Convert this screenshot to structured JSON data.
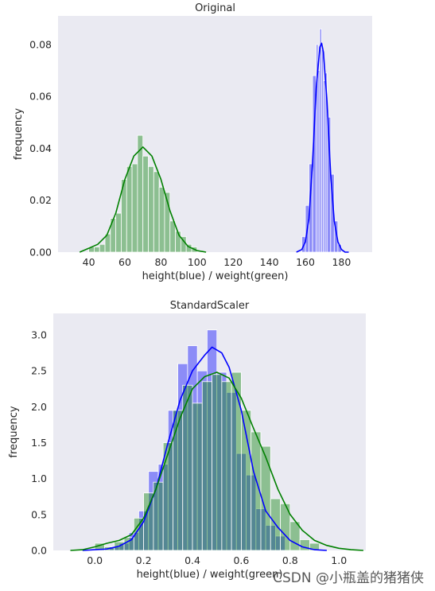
{
  "watermark": "CSDN @小瓶盖的猪猪侠",
  "chart_data": [
    {
      "type": "histogram",
      "title": "Original",
      "xlabel": "height(blue) / weight(green)",
      "ylabel": "frequency",
      "xlim": [
        23,
        197
      ],
      "ylim": [
        0,
        0.091
      ],
      "xticks": [
        40,
        60,
        80,
        100,
        120,
        140,
        160,
        180
      ],
      "yticks": [
        0.0,
        0.02,
        0.04,
        0.06,
        0.08
      ],
      "ytick_labels": [
        "0.00",
        "0.02",
        "0.04",
        "0.06",
        "0.08"
      ],
      "grid": false,
      "background": "#eaeaf2",
      "series": [
        {
          "name": "weight",
          "color": "#008000",
          "bins": [
            {
              "x0": 36.5,
              "x1": 39.5,
              "h": 0.0
            },
            {
              "x0": 40,
              "x1": 43,
              "h": 0.002
            },
            {
              "x0": 43,
              "x1": 46,
              "h": 0.002
            },
            {
              "x0": 46,
              "x1": 49,
              "h": 0.003
            },
            {
              "x0": 49,
              "x1": 52,
              "h": 0.007
            },
            {
              "x0": 52,
              "x1": 55,
              "h": 0.013
            },
            {
              "x0": 55,
              "x1": 58,
              "h": 0.015
            },
            {
              "x0": 58,
              "x1": 61,
              "h": 0.028
            },
            {
              "x0": 61,
              "x1": 64,
              "h": 0.033
            },
            {
              "x0": 64,
              "x1": 67,
              "h": 0.034
            },
            {
              "x0": 67,
              "x1": 70,
              "h": 0.045
            },
            {
              "x0": 70,
              "x1": 73,
              "h": 0.037
            },
            {
              "x0": 73,
              "x1": 76,
              "h": 0.033
            },
            {
              "x0": 76,
              "x1": 79,
              "h": 0.031
            },
            {
              "x0": 79,
              "x1": 82,
              "h": 0.025
            },
            {
              "x0": 82,
              "x1": 85,
              "h": 0.023
            },
            {
              "x0": 85,
              "x1": 88,
              "h": 0.012
            },
            {
              "x0": 88,
              "x1": 91,
              "h": 0.008
            },
            {
              "x0": 91,
              "x1": 94,
              "h": 0.006
            },
            {
              "x0": 94,
              "x1": 97,
              "h": 0.003
            },
            {
              "x0": 97,
              "x1": 100,
              "h": 0.002
            }
          ],
          "kde": {
            "x": [
              35,
              40,
              45,
              50,
              55,
              60,
              65,
              70,
              75,
              80,
              85,
              90,
              95,
              100,
              105
            ],
            "y": [
              0.0,
              0.0015,
              0.003,
              0.0065,
              0.015,
              0.028,
              0.037,
              0.0405,
              0.037,
              0.028,
              0.016,
              0.0065,
              0.0022,
              0.0006,
              0.0
            ]
          }
        },
        {
          "name": "height",
          "color": "#0000ff",
          "bins": [
            {
              "x0": 156,
              "x1": 158,
              "h": 0.0
            },
            {
              "x0": 158,
              "x1": 160,
              "h": 0.006
            },
            {
              "x0": 160,
              "x1": 162,
              "h": 0.018
            },
            {
              "x0": 162,
              "x1": 164,
              "h": 0.034
            },
            {
              "x0": 164,
              "x1": 166,
              "h": 0.068
            },
            {
              "x0": 166,
              "x1": 167,
              "h": 0.08
            },
            {
              "x0": 167,
              "x1": 168,
              "h": 0.07
            },
            {
              "x0": 168,
              "x1": 169,
              "h": 0.086
            },
            {
              "x0": 169,
              "x1": 170,
              "h": 0.078
            },
            {
              "x0": 170,
              "x1": 171,
              "h": 0.066
            },
            {
              "x0": 171,
              "x1": 172,
              "h": 0.069
            },
            {
              "x0": 172,
              "x1": 174,
              "h": 0.052
            },
            {
              "x0": 174,
              "x1": 176,
              "h": 0.03
            },
            {
              "x0": 176,
              "x1": 178,
              "h": 0.012
            },
            {
              "x0": 178,
              "x1": 180,
              "h": 0.003
            }
          ],
          "kde": {
            "x": [
              155,
              158,
              160,
              162,
              164,
              166,
              168,
              169,
              170,
              172,
              174,
              176,
              178,
              180,
              182,
              184
            ],
            "y": [
              0.0,
              0.001,
              0.004,
              0.013,
              0.035,
              0.063,
              0.079,
              0.0805,
              0.077,
              0.058,
              0.03,
              0.012,
              0.004,
              0.001,
              0.0,
              0.0
            ]
          }
        }
      ]
    },
    {
      "type": "histogram",
      "title": "StandardScaler",
      "xlabel": "height(blue) / weight(green)",
      "ylabel": "frequency",
      "xlim": [
        -0.17,
        1.11
      ],
      "ylim": [
        0,
        3.3
      ],
      "xticks": [
        0.0,
        0.2,
        0.4,
        0.6,
        0.8,
        1.0
      ],
      "yticks": [
        0.0,
        0.5,
        1.0,
        1.5,
        2.0,
        2.5,
        3.0
      ],
      "grid": false,
      "background": "#eaeaf2",
      "series": [
        {
          "name": "height",
          "color": "#0000ff",
          "bins": [
            {
              "x0": 0.06,
              "x1": 0.1,
              "h": 0.05
            },
            {
              "x0": 0.1,
              "x1": 0.14,
              "h": 0.1
            },
            {
              "x0": 0.14,
              "x1": 0.18,
              "h": 0.25
            },
            {
              "x0": 0.18,
              "x1": 0.22,
              "h": 0.55
            },
            {
              "x0": 0.22,
              "x1": 0.26,
              "h": 1.1
            },
            {
              "x0": 0.26,
              "x1": 0.3,
              "h": 1.2
            },
            {
              "x0": 0.3,
              "x1": 0.34,
              "h": 1.95
            },
            {
              "x0": 0.34,
              "x1": 0.38,
              "h": 2.6
            },
            {
              "x0": 0.38,
              "x1": 0.42,
              "h": 2.85
            },
            {
              "x0": 0.42,
              "x1": 0.46,
              "h": 2.5
            },
            {
              "x0": 0.46,
              "x1": 0.5,
              "h": 3.07
            },
            {
              "x0": 0.5,
              "x1": 0.54,
              "h": 2.48
            },
            {
              "x0": 0.54,
              "x1": 0.58,
              "h": 2.2
            },
            {
              "x0": 0.58,
              "x1": 0.62,
              "h": 1.35
            },
            {
              "x0": 0.62,
              "x1": 0.66,
              "h": 1.05
            },
            {
              "x0": 0.66,
              "x1": 0.7,
              "h": 0.58
            },
            {
              "x0": 0.7,
              "x1": 0.74,
              "h": 0.35
            },
            {
              "x0": 0.74,
              "x1": 0.78,
              "h": 0.2
            }
          ],
          "kde": {
            "x": [
              -0.05,
              0.05,
              0.1,
              0.15,
              0.2,
              0.25,
              0.3,
              0.35,
              0.4,
              0.45,
              0.48,
              0.52,
              0.55,
              0.6,
              0.65,
              0.7,
              0.75,
              0.8,
              0.85,
              0.9,
              0.95
            ],
            "y": [
              0.0,
              0.02,
              0.06,
              0.15,
              0.4,
              0.85,
              1.5,
              2.1,
              2.5,
              2.72,
              2.83,
              2.75,
              2.55,
              1.95,
              1.1,
              0.55,
              0.32,
              0.14,
              0.05,
              0.01,
              0.0
            ]
          }
        },
        {
          "name": "weight",
          "color": "#008000",
          "bins": [
            {
              "x0": 0.0,
              "x1": 0.04,
              "h": 0.1
            },
            {
              "x0": 0.04,
              "x1": 0.08,
              "h": 0.05
            },
            {
              "x0": 0.08,
              "x1": 0.12,
              "h": 0.12
            },
            {
              "x0": 0.12,
              "x1": 0.16,
              "h": 0.18
            },
            {
              "x0": 0.16,
              "x1": 0.2,
              "h": 0.45
            },
            {
              "x0": 0.2,
              "x1": 0.24,
              "h": 0.8
            },
            {
              "x0": 0.24,
              "x1": 0.28,
              "h": 0.95
            },
            {
              "x0": 0.28,
              "x1": 0.32,
              "h": 1.5
            },
            {
              "x0": 0.32,
              "x1": 0.36,
              "h": 1.95
            },
            {
              "x0": 0.36,
              "x1": 0.4,
              "h": 2.3
            },
            {
              "x0": 0.4,
              "x1": 0.44,
              "h": 2.05
            },
            {
              "x0": 0.44,
              "x1": 0.48,
              "h": 2.35
            },
            {
              "x0": 0.48,
              "x1": 0.52,
              "h": 2.45
            },
            {
              "x0": 0.52,
              "x1": 0.56,
              "h": 2.35
            },
            {
              "x0": 0.56,
              "x1": 0.6,
              "h": 2.48
            },
            {
              "x0": 0.6,
              "x1": 0.64,
              "h": 1.95
            },
            {
              "x0": 0.64,
              "x1": 0.68,
              "h": 1.65
            },
            {
              "x0": 0.68,
              "x1": 0.72,
              "h": 1.45
            },
            {
              "x0": 0.72,
              "x1": 0.76,
              "h": 0.72
            },
            {
              "x0": 0.76,
              "x1": 0.8,
              "h": 0.65
            },
            {
              "x0": 0.8,
              "x1": 0.84,
              "h": 0.4
            },
            {
              "x0": 0.84,
              "x1": 0.88,
              "h": 0.15
            },
            {
              "x0": 0.88,
              "x1": 0.92,
              "h": 0.1
            }
          ],
          "kde": {
            "x": [
              -0.1,
              -0.05,
              0.0,
              0.05,
              0.1,
              0.15,
              0.2,
              0.25,
              0.3,
              0.35,
              0.4,
              0.45,
              0.5,
              0.55,
              0.6,
              0.65,
              0.7,
              0.75,
              0.8,
              0.85,
              0.9,
              0.95,
              1.0,
              1.05,
              1.1
            ],
            "y": [
              0.0,
              0.01,
              0.05,
              0.1,
              0.14,
              0.22,
              0.45,
              0.85,
              1.35,
              1.85,
              2.25,
              2.42,
              2.48,
              2.4,
              2.12,
              1.7,
              1.3,
              0.85,
              0.5,
              0.28,
              0.14,
              0.07,
              0.03,
              0.01,
              0.0
            ]
          }
        }
      ]
    }
  ]
}
